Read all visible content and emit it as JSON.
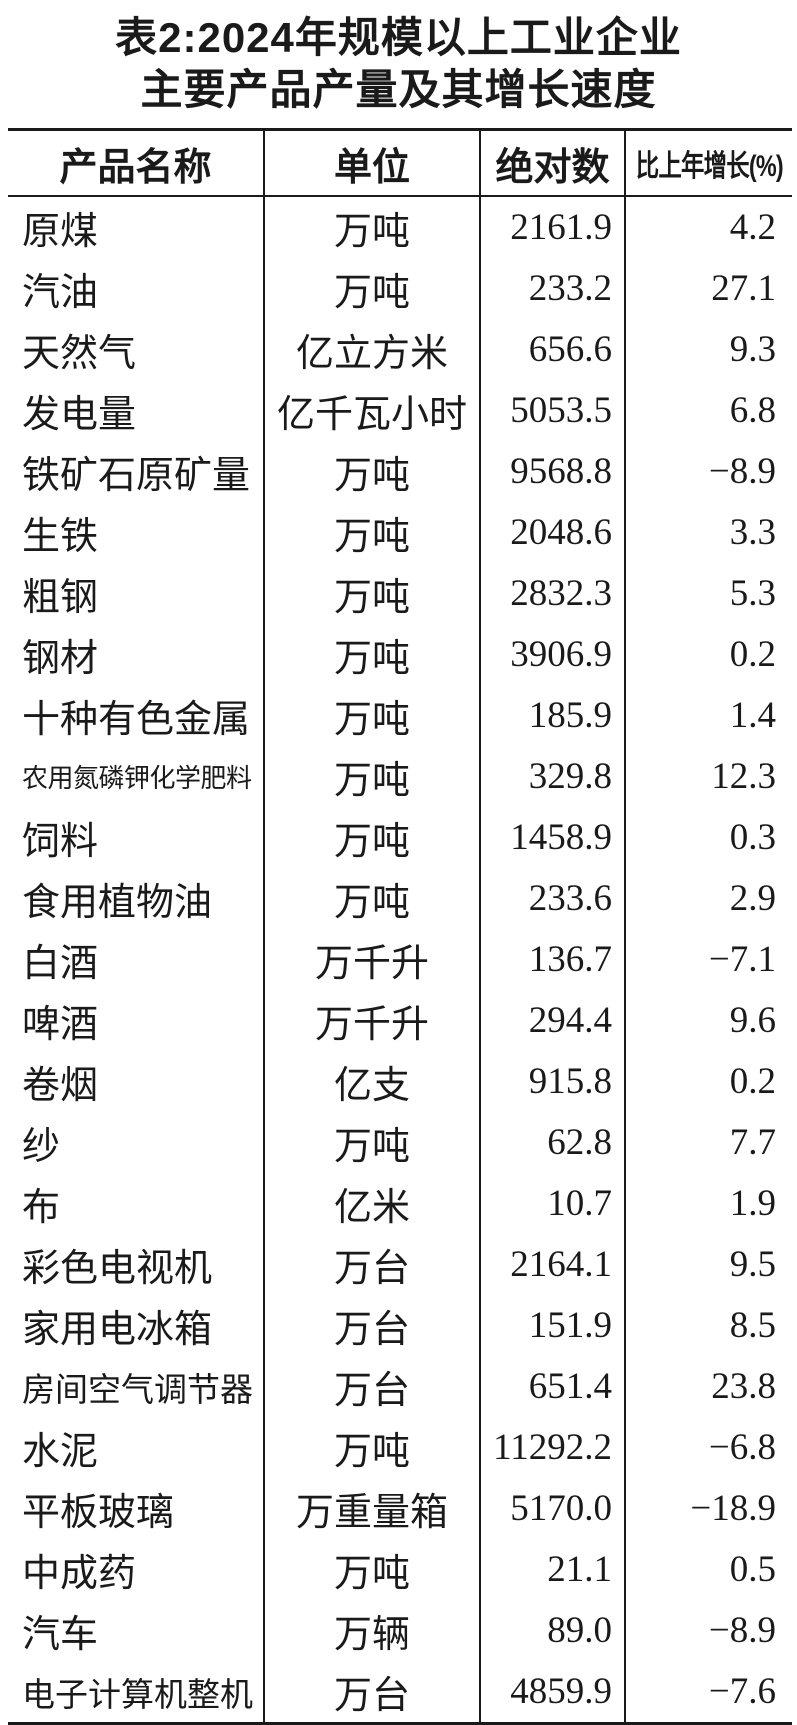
{
  "colors": {
    "background": "#ffffff",
    "text": "#1a1a1a",
    "rule": "#1a1a1a"
  },
  "title": {
    "line1": "表2:2024年规模以上工业企业",
    "line2": "主要产品产量及其增长速度"
  },
  "table": {
    "headers": [
      "产品名称",
      "单位",
      "绝对数",
      "比上年增长(%)"
    ],
    "rows": [
      {
        "name": "原煤",
        "unit": "万吨",
        "value": "2161.9",
        "growth": "4.2"
      },
      {
        "name": "汽油",
        "unit": "万吨",
        "value": "233.2",
        "growth": "27.1"
      },
      {
        "name": "天然气",
        "unit": "亿立方米",
        "value": "656.6",
        "growth": "9.3"
      },
      {
        "name": "发电量",
        "unit": "亿千瓦小时",
        "value": "5053.5",
        "growth": "6.8"
      },
      {
        "name": "铁矿石原矿量",
        "unit": "万吨",
        "value": "9568.8",
        "growth": "−8.9"
      },
      {
        "name": "生铁",
        "unit": "万吨",
        "value": "2048.6",
        "growth": "3.3"
      },
      {
        "name": "粗钢",
        "unit": "万吨",
        "value": "2832.3",
        "growth": "5.3"
      },
      {
        "name": "钢材",
        "unit": "万吨",
        "value": "3906.9",
        "growth": "0.2"
      },
      {
        "name": "十种有色金属",
        "unit": "万吨",
        "value": "185.9",
        "growth": "1.4"
      },
      {
        "name": "农用氮磷钾化学肥料",
        "unit": "万吨",
        "value": "329.8",
        "growth": "12.3"
      },
      {
        "name": "饲料",
        "unit": "万吨",
        "value": "1458.9",
        "growth": "0.3"
      },
      {
        "name": "食用植物油",
        "unit": "万吨",
        "value": "233.6",
        "growth": "2.9"
      },
      {
        "name": "白酒",
        "unit": "万千升",
        "value": "136.7",
        "growth": "−7.1"
      },
      {
        "name": "啤酒",
        "unit": "万千升",
        "value": "294.4",
        "growth": "9.6"
      },
      {
        "name": "卷烟",
        "unit": "亿支",
        "value": "915.8",
        "growth": "0.2"
      },
      {
        "name": "纱",
        "unit": "万吨",
        "value": "62.8",
        "growth": "7.7"
      },
      {
        "name": "布",
        "unit": "亿米",
        "value": "10.7",
        "growth": "1.9"
      },
      {
        "name": "彩色电视机",
        "unit": "万台",
        "value": "2164.1",
        "growth": "9.5"
      },
      {
        "name": "家用电冰箱",
        "unit": "万台",
        "value": "151.9",
        "growth": "8.5"
      },
      {
        "name": "房间空气调节器",
        "unit": "万台",
        "value": "651.4",
        "growth": "23.8"
      },
      {
        "name": "水泥",
        "unit": "万吨",
        "value": "11292.2",
        "growth": "−6.8"
      },
      {
        "name": "平板玻璃",
        "unit": "万重量箱",
        "value": "5170.0",
        "growth": "−18.9"
      },
      {
        "name": "中成药",
        "unit": "万吨",
        "value": "21.1",
        "growth": "0.5"
      },
      {
        "name": "汽车",
        "unit": "万辆",
        "value": "89.0",
        "growth": "−8.9"
      },
      {
        "name": "电子计算机整机",
        "unit": "万台",
        "value": "4859.9",
        "growth": "−7.6"
      }
    ]
  }
}
